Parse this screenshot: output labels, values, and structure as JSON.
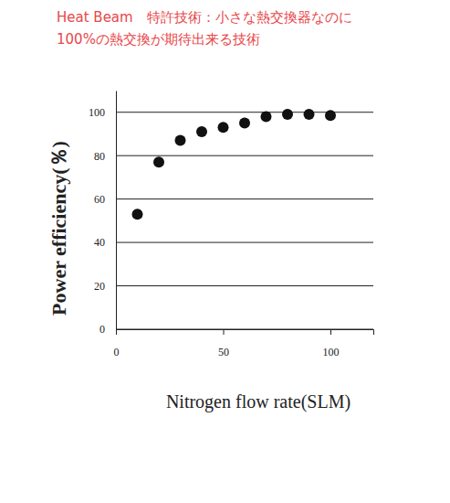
{
  "chart_data": {
    "type": "scatter",
    "title": "Heat Beam　特許技術：小さな熱交換器なのに",
    "subtitle": "100%の熱交換が期待出来る技術",
    "x_label": "Nitrogen flow rate(SLM)",
    "y_label": "Power efficiency(％)",
    "x": [
      10,
      20,
      30,
      40,
      50,
      60,
      70,
      80,
      90,
      100
    ],
    "values": [
      53,
      77,
      87,
      91,
      93,
      95,
      98,
      99,
      99,
      98.5
    ],
    "color": "#111111",
    "marker": "circle",
    "xlim": [
      0,
      120
    ],
    "xticks": [
      0,
      50,
      100
    ],
    "ylim": [
      0,
      110
    ],
    "yticks": [
      0,
      20,
      40,
      60,
      80,
      100
    ],
    "grid": true
  }
}
